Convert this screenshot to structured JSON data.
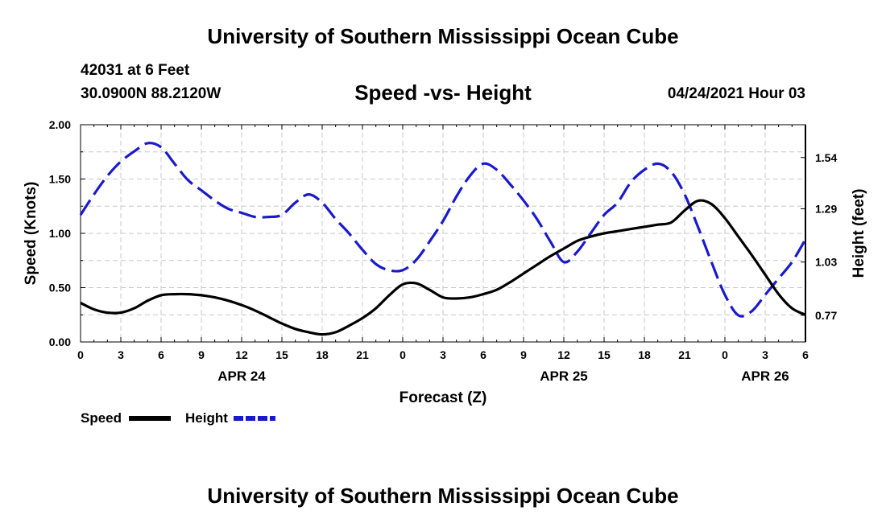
{
  "header": {
    "title": "University of Southern Mississippi Ocean Cube",
    "station_line": "42031 at 6 Feet",
    "coords_line": "30.0900N  88.2120W",
    "subtitle": "Speed -vs- Height",
    "datetime": "04/24/2021 Hour 03"
  },
  "footer": {
    "title": "University of Southern Mississippi Ocean Cube"
  },
  "legend": {
    "speed_label": "Speed",
    "height_label": "Height"
  },
  "colors": {
    "speed": "#000000",
    "height": "#1a1acc",
    "grid": "#c8c8c8"
  },
  "chart_data": {
    "type": "line",
    "title": "Speed -vs- Height",
    "xlabel": "Forecast (Z)",
    "ylabel": "Speed (Knots)",
    "y2label": "Height (feet)",
    "x_range": [
      0,
      54
    ],
    "ylim": [
      0,
      2
    ],
    "y2lim": [
      0.64,
      1.7
    ],
    "y_ticks": [
      "0.00",
      "0.50",
      "1.00",
      "1.50",
      "2.00"
    ],
    "y2_ticks": [
      "0.77",
      "1.03",
      "1.29",
      "1.54"
    ],
    "y2_tick_values": [
      0.77,
      1.03,
      1.29,
      1.54
    ],
    "x_tick_labels": [
      "0",
      "3",
      "6",
      "9",
      "12",
      "15",
      "18",
      "21",
      "0",
      "3",
      "6",
      "9",
      "12",
      "15",
      "18",
      "21",
      "0",
      "3",
      "6"
    ],
    "day_labels": [
      {
        "label": "APR 24",
        "hour": 12
      },
      {
        "label": "APR 25",
        "hour": 36
      },
      {
        "label": "APR 26",
        "hour": 51
      }
    ],
    "series": [
      {
        "name": "Speed",
        "axis": "left",
        "style": "solid",
        "x": [
          0,
          1,
          2,
          3,
          4,
          5,
          6,
          7,
          8,
          9,
          10,
          11,
          12,
          13,
          14,
          15,
          16,
          17,
          18,
          19,
          20,
          21,
          22,
          23,
          24,
          25,
          26,
          27,
          28,
          29,
          30,
          31,
          32,
          33,
          34,
          35,
          36,
          37,
          38,
          39,
          40,
          41,
          42,
          43,
          44,
          45,
          46,
          47,
          48,
          49,
          50,
          51,
          52,
          53,
          54
        ],
        "values": [
          0.36,
          0.3,
          0.27,
          0.27,
          0.31,
          0.38,
          0.43,
          0.44,
          0.44,
          0.43,
          0.41,
          0.38,
          0.34,
          0.29,
          0.23,
          0.17,
          0.12,
          0.09,
          0.07,
          0.09,
          0.15,
          0.22,
          0.31,
          0.43,
          0.53,
          0.54,
          0.48,
          0.41,
          0.4,
          0.41,
          0.44,
          0.48,
          0.55,
          0.63,
          0.71,
          0.79,
          0.86,
          0.93,
          0.97,
          1.0,
          1.02,
          1.04,
          1.06,
          1.08,
          1.1,
          1.21,
          1.3,
          1.27,
          1.14,
          0.97,
          0.8,
          0.62,
          0.44,
          0.31,
          0.25
        ]
      },
      {
        "name": "Height",
        "axis": "right",
        "style": "dashed",
        "x": [
          0,
          1,
          2,
          3,
          4,
          5,
          6,
          7,
          8,
          9,
          10,
          11,
          12,
          13,
          14,
          15,
          16,
          17,
          18,
          19,
          20,
          21,
          22,
          23,
          24,
          25,
          26,
          27,
          28,
          29,
          30,
          31,
          32,
          33,
          34,
          35,
          36,
          37,
          38,
          39,
          40,
          41,
          42,
          43,
          44,
          45,
          46,
          47,
          48,
          49,
          50,
          51,
          52,
          53,
          54
        ],
        "values": [
          1.26,
          1.36,
          1.45,
          1.52,
          1.57,
          1.61,
          1.59,
          1.51,
          1.43,
          1.38,
          1.33,
          1.29,
          1.27,
          1.25,
          1.25,
          1.26,
          1.32,
          1.36,
          1.32,
          1.24,
          1.17,
          1.09,
          1.02,
          0.99,
          0.99,
          1.04,
          1.13,
          1.23,
          1.35,
          1.45,
          1.51,
          1.48,
          1.41,
          1.33,
          1.24,
          1.13,
          1.03,
          1.08,
          1.17,
          1.26,
          1.32,
          1.42,
          1.48,
          1.51,
          1.47,
          1.36,
          1.2,
          1.03,
          0.87,
          0.77,
          0.79,
          0.87,
          0.95,
          1.03,
          1.14
        ]
      }
    ]
  }
}
